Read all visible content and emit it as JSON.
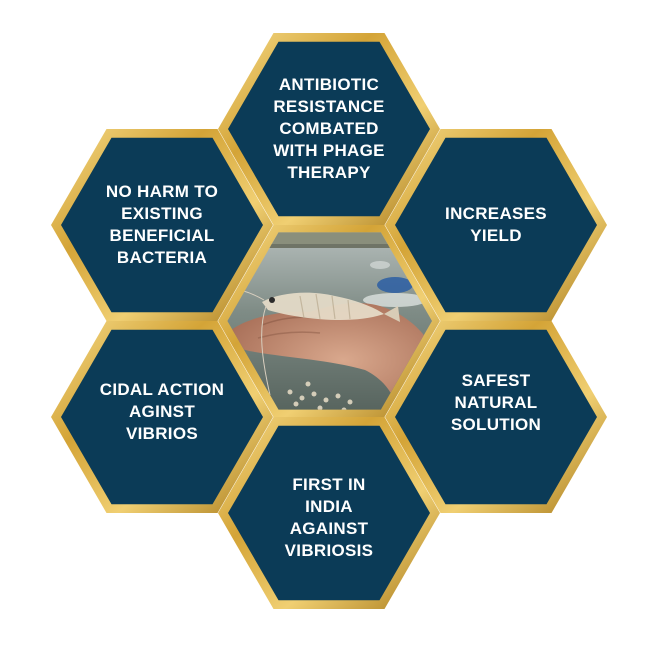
{
  "colors": {
    "hex_fill": "#0b3b57",
    "gold_light": "#f4d67a",
    "gold_mid": "#d7a93c",
    "gold_dark": "#a97a1a",
    "text": "#ffffff"
  },
  "center_image": {
    "icon": "shrimp-on-hand-photo",
    "description_visible": false
  },
  "cells": {
    "top": {
      "label": "ANTIBIOTIC\nRESISTANCE\nCOMBATED\nWITH PHAGE\nTHERAPY"
    },
    "upper_right": {
      "label": "INCREASES\nYIELD"
    },
    "lower_right": {
      "label": "SAFEST\nNATURAL\nSOLUTION"
    },
    "bottom": {
      "label": "FIRST IN\nINDIA\nAGAINST\nVIBRIOSIS"
    },
    "lower_left": {
      "label": "CIDAL ACTION\nAGINST\nVIBRIOS"
    },
    "upper_left": {
      "label": "NO HARM TO\nEXISTING\nBENEFICIAL\nBACTERIA"
    }
  }
}
